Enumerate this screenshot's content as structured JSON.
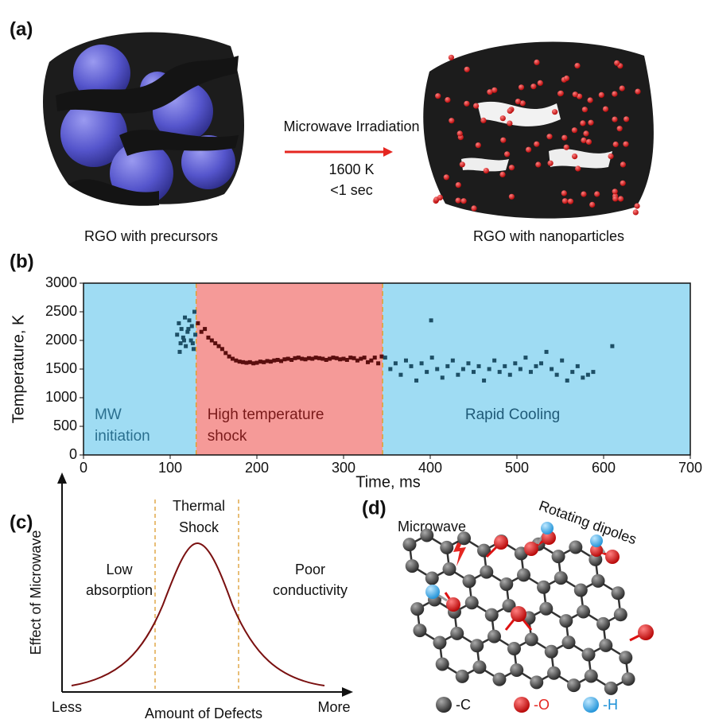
{
  "panel_a": {
    "label": "(a)",
    "arrow_text": "Microwave Irradiation",
    "temperature": "1600 K",
    "duration": "<1 sec",
    "left_caption": "RGO with precursors",
    "right_caption": "RGO with nanoparticles"
  },
  "chart_data": {
    "type": "scatter",
    "panel_label": "(b)",
    "xlabel": "Time, ms",
    "ylabel": "Temperature, K",
    "xlim": [
      0,
      700
    ],
    "xticks": [
      0,
      100,
      200,
      300,
      400,
      500,
      600,
      700
    ],
    "ylim": [
      0,
      3000
    ],
    "yticks": [
      0,
      500,
      1000,
      1500,
      2000,
      2500,
      3000
    ],
    "regions": [
      {
        "label": [
          "MW",
          "initiation"
        ],
        "start": 0,
        "end": 130,
        "color": "#9fdcf3"
      },
      {
        "label": [
          "High temperature",
          "shock"
        ],
        "start": 130,
        "end": 345,
        "color": "#f59a98"
      },
      {
        "label": [
          "Rapid Cooling"
        ],
        "start": 345,
        "end": 700,
        "color": "#9fdcf3"
      }
    ],
    "series": [
      {
        "color": "#1d4f66",
        "x": [
          108,
          110,
          112,
          113,
          115,
          117,
          118,
          120,
          122,
          124,
          125,
          127,
          128,
          129,
          111,
          116,
          121,
          126
        ],
        "values": [
          2100,
          2300,
          1950,
          2200,
          2050,
          2400,
          1900,
          2150,
          2350,
          2000,
          2250,
          1850,
          2500,
          2100,
          1800,
          2000,
          2200,
          1950
        ]
      },
      {
        "color": "#5b0e0e",
        "x": [
          132,
          136,
          140,
          144,
          148,
          152,
          156,
          160,
          164,
          168,
          172,
          176,
          180,
          184,
          188,
          192,
          196,
          200,
          204,
          208,
          212,
          216,
          220,
          224,
          228,
          232,
          236,
          240,
          244,
          248,
          252,
          256,
          260,
          264,
          268,
          272,
          276,
          280,
          284,
          288,
          292,
          296,
          300,
          304,
          308,
          312,
          316,
          320,
          324,
          328,
          332,
          336,
          340,
          344
        ],
        "values": [
          2300,
          2150,
          2200,
          2050,
          2000,
          1950,
          1900,
          1850,
          1780,
          1720,
          1680,
          1650,
          1630,
          1620,
          1610,
          1620,
          1600,
          1610,
          1630,
          1620,
          1640,
          1630,
          1650,
          1660,
          1640,
          1670,
          1680,
          1660,
          1690,
          1700,
          1680,
          1670,
          1690,
          1680,
          1700,
          1690,
          1680,
          1660,
          1680,
          1700,
          1690,
          1670,
          1680,
          1660,
          1700,
          1690,
          1650,
          1680,
          1700,
          1620,
          1650,
          1700,
          1600,
          1720
        ]
      },
      {
        "color": "#1d4f66",
        "x": [
          348,
          354,
          360,
          366,
          372,
          378,
          384,
          390,
          396,
          402,
          408,
          414,
          420,
          426,
          432,
          438,
          444,
          450,
          456,
          462,
          468,
          474,
          480,
          486,
          492,
          498,
          504,
          510,
          516,
          522,
          528,
          534,
          540,
          546,
          552,
          558,
          564,
          570,
          576,
          582,
          588,
          401,
          610
        ],
        "values": [
          1700,
          1500,
          1600,
          1400,
          1650,
          1550,
          1300,
          1600,
          1450,
          1700,
          1500,
          1350,
          1550,
          1650,
          1400,
          1500,
          1600,
          1450,
          1550,
          1300,
          1500,
          1650,
          1450,
          1550,
          1400,
          1600,
          1500,
          1700,
          1450,
          1550,
          1600,
          1800,
          1500,
          1400,
          1650,
          1300,
          1450,
          1550,
          1350,
          1400,
          1450,
          2350,
          1900
        ]
      }
    ]
  },
  "panel_c": {
    "label": "(c)",
    "y_label": "Effect of Microwave",
    "x_label": "Amount of Defects",
    "x_start": "Less",
    "x_end": "More",
    "center": [
      "Thermal",
      "Shock"
    ],
    "left": [
      "Low",
      "absorption"
    ],
    "right": [
      "Poor",
      "conductivity"
    ]
  },
  "panel_d": {
    "label": "(d)",
    "microwave": "Microwave",
    "dipoles": "Rotating dipoles",
    "legend": [
      "-C",
      "-O",
      "-H"
    ]
  }
}
